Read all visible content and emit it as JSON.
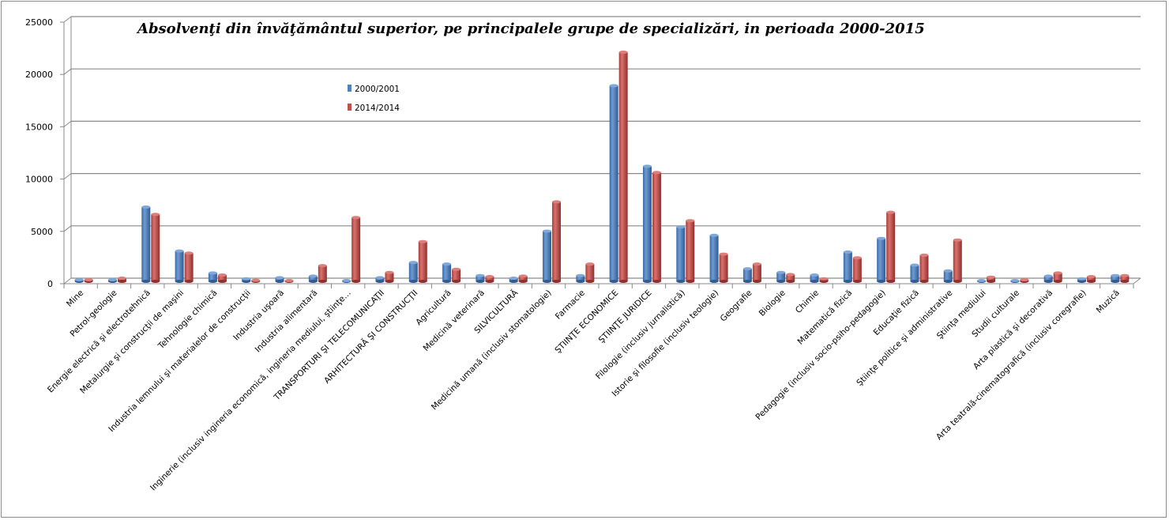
{
  "chart_data": {
    "type": "bar",
    "title": "Absolvenţi din învăţământul superior, pe principalele grupe de specializări, in perioada 2000-2015",
    "xlabel": "",
    "ylabel": "",
    "ylim": [
      0,
      25000
    ],
    "yticks": [
      "0",
      "5000",
      "10000",
      "15000",
      "20000",
      "25000"
    ],
    "grid": true,
    "legend_position": "top-left-inside",
    "categories": [
      "Mine",
      "Petrol-geologie",
      "Energie electrică şi electrotehnică",
      "Metalurgie şi construcţii de maşini",
      "Tehnologie chimică",
      "Industria lemnului şi materialelor de construcţii",
      "Industria uşoară",
      "Industria alimentară",
      "Inginerie (inclusiv ingineria economică, ingineria mediului, ştiinţe…",
      "TRANSPORTURI ŞI TELECOMUNICAŢII",
      "ARHITECTURĂ  ŞI CONSTRUCŢII",
      "Agricultură",
      "Medicină veterinară",
      "SILVICULTURĂ",
      "Medicină umană  (inclusiv stomatologie)",
      "Farmacie",
      "ŞTIINŢE ECONOMICE",
      "ŞTIINŢE JURIDICE",
      "Filologie (inclusiv jurnalistică)",
      "Istorie şi filosofie (inclusiv teologie)",
      "Geografie",
      "Biologie",
      "Chimie",
      "Matematică fizică",
      "Pedagogie (inclusiv socio-psiho-pedagogie)",
      "Educaţie fizică",
      "Ştiinţe politice şi administrative",
      "Ştiinţa mediului",
      "Studii culturale",
      "Arta plastică şi decorativă",
      "Arta teatrală-cinematografică (inclusiv coregrafie)",
      "Muzică"
    ],
    "series": [
      {
        "name": "2000/2001",
        "color": "#4f81bd",
        "values": [
          150,
          150,
          7100,
          2900,
          800,
          250,
          350,
          500,
          20,
          350,
          1800,
          1650,
          550,
          300,
          4800,
          550,
          18700,
          11000,
          5200,
          4400,
          1200,
          850,
          600,
          2800,
          4100,
          1550,
          1000,
          30,
          30,
          500,
          250,
          550
        ]
      },
      {
        "name": "2014/2014",
        "color": "#c0504d",
        "values": [
          150,
          300,
          6400,
          2700,
          600,
          100,
          50,
          1500,
          6100,
          850,
          3800,
          1150,
          450,
          500,
          7600,
          1650,
          21900,
          10400,
          5800,
          2600,
          1650,
          650,
          250,
          2250,
          6600,
          2500,
          3950,
          400,
          150,
          800,
          450,
          550
        ]
      }
    ]
  }
}
